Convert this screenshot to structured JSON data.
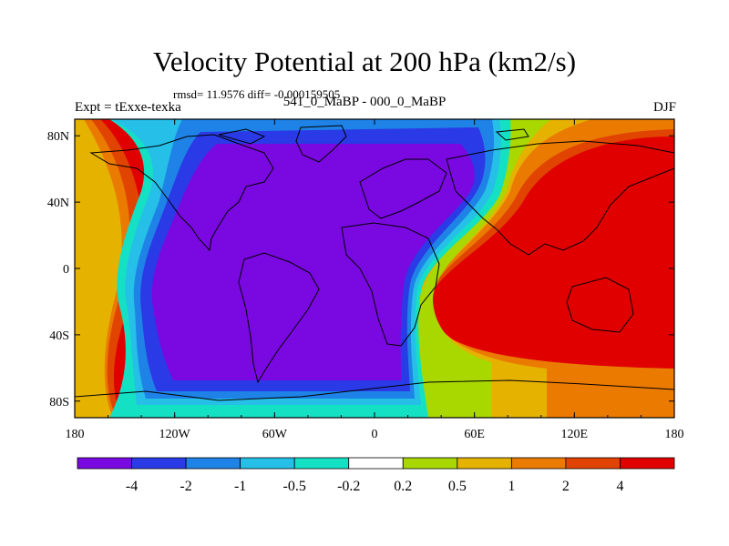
{
  "chart_data": {
    "type": "heatmap",
    "title": "Velocity Potential at 200 hPa (km2/s)",
    "stats_text": "rmsd= 11.9576 diff= -0.000159505",
    "experiment_label": "Expt = tExxe-texka",
    "comparison_label": "541_0_MaBP - 000_0_MaBP",
    "season": "DJF",
    "x_axis": {
      "range": [
        -180,
        180
      ],
      "ticks": [
        -180,
        -120,
        -60,
        0,
        60,
        120,
        180
      ],
      "tick_labels": [
        "180",
        "120W",
        "60W",
        "0",
        "60E",
        "120E",
        "180"
      ]
    },
    "y_axis": {
      "range": [
        -90,
        90
      ],
      "ticks": [
        80,
        40,
        0,
        -40,
        -80
      ],
      "tick_labels": [
        "80N",
        "40N",
        "0",
        "40S",
        "80S"
      ]
    },
    "colorbar": {
      "boundaries": [
        -4,
        -2,
        -1,
        -0.5,
        -0.2,
        0.2,
        0.5,
        1,
        2,
        4
      ],
      "labels": [
        "-4",
        "-2",
        "-1",
        "-0.5",
        "-0.2",
        "0.2",
        "0.5",
        "1",
        "2",
        "4"
      ],
      "colors": [
        "#7a08e0",
        "#2a3ae6",
        "#1f82e6",
        "#25bfe8",
        "#14e0c4",
        "#ffffff",
        "#a8d800",
        "#e6b200",
        "#ea7a00",
        "#e04400",
        "#e00000"
      ]
    },
    "field_description_centers": {
      "negative_center": [
        -40,
        0
      ],
      "positive_center": [
        120,
        0
      ]
    }
  }
}
